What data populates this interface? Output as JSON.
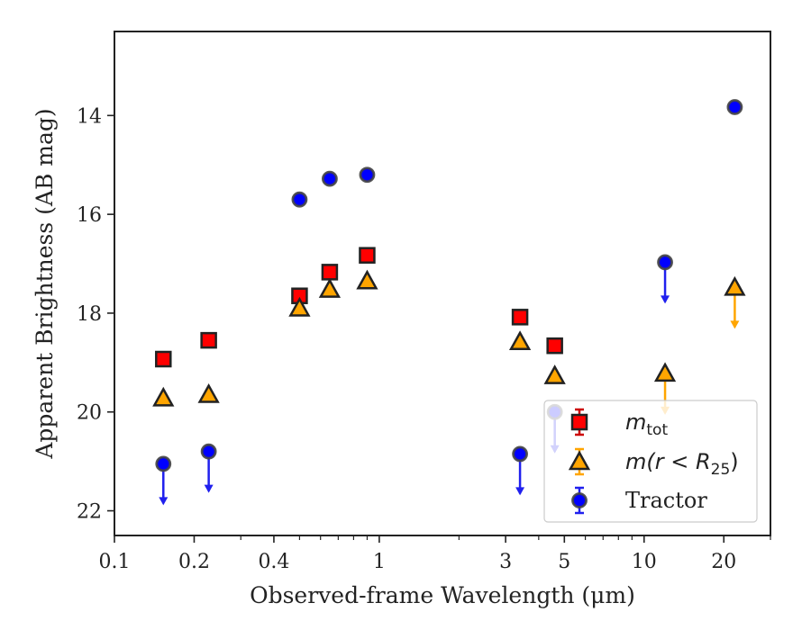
{
  "chart_data": {
    "type": "scatter",
    "xlabel": "Observed-frame Wavelength (μm)",
    "ylabel": "Apparent Brightness (AB mag)",
    "x_scale": "log",
    "y_inverted": true,
    "xlim": [
      0.1,
      30
    ],
    "ylim": [
      22.5,
      12.3
    ],
    "x_ticks": [
      {
        "value": 0.1,
        "label": "0.1"
      },
      {
        "value": 0.2,
        "label": "0.2"
      },
      {
        "value": 0.4,
        "label": "0.4"
      },
      {
        "value": 1,
        "label": "1"
      },
      {
        "value": 3,
        "label": "3"
      },
      {
        "value": 5,
        "label": "5"
      },
      {
        "value": 10,
        "label": "10"
      },
      {
        "value": 20,
        "label": "20"
      }
    ],
    "y_ticks": [
      {
        "value": 14,
        "label": "14"
      },
      {
        "value": 16,
        "label": "16"
      },
      {
        "value": 18,
        "label": "18"
      },
      {
        "value": 20,
        "label": "20"
      },
      {
        "value": 22,
        "label": "22"
      }
    ],
    "grid": false,
    "legend_position": "bottom-right",
    "series": [
      {
        "name": "m_tot",
        "marker": "square",
        "color": "#ff0000",
        "edge_color": "#222222",
        "error_color": "#cc0000",
        "points": [
          {
            "x": 0.153,
            "y": 18.93
          },
          {
            "x": 0.227,
            "y": 18.55
          },
          {
            "x": 0.5,
            "y": 17.65
          },
          {
            "x": 0.65,
            "y": 17.17
          },
          {
            "x": 0.9,
            "y": 16.83
          },
          {
            "x": 3.4,
            "y": 18.08
          },
          {
            "x": 4.6,
            "y": 18.66
          }
        ]
      },
      {
        "name": "m(r < R25)",
        "marker": "triangle",
        "color": "#ffa500",
        "edge_color": "#222222",
        "error_color": "#ffa500",
        "points": [
          {
            "x": 0.153,
            "y": 19.72
          },
          {
            "x": 0.227,
            "y": 19.65
          },
          {
            "x": 0.5,
            "y": 17.9
          },
          {
            "x": 0.65,
            "y": 17.52
          },
          {
            "x": 0.9,
            "y": 17.35
          },
          {
            "x": 3.4,
            "y": 18.58
          },
          {
            "x": 4.6,
            "y": 19.27
          },
          {
            "x": 12.0,
            "y": 19.22,
            "upper_limit": true
          },
          {
            "x": 22.0,
            "y": 17.48,
            "upper_limit": true
          }
        ]
      },
      {
        "name": "Tractor",
        "marker": "circle",
        "color": "#0000ff",
        "edge_color": "#444444",
        "error_color": "#2020ee",
        "points": [
          {
            "x": 0.153,
            "y": 21.05,
            "upper_limit": true
          },
          {
            "x": 0.227,
            "y": 20.8,
            "upper_limit": true
          },
          {
            "x": 0.5,
            "y": 15.7
          },
          {
            "x": 0.65,
            "y": 15.28
          },
          {
            "x": 0.9,
            "y": 15.2
          },
          {
            "x": 3.4,
            "y": 20.85,
            "upper_limit": true
          },
          {
            "x": 4.6,
            "y": 20.0,
            "upper_limit": true
          },
          {
            "x": 12.0,
            "y": 16.97,
            "upper_limit": true
          },
          {
            "x": 22.0,
            "y": 13.83
          }
        ]
      }
    ],
    "legend": {
      "entries": [
        {
          "series": 0,
          "math": "m",
          "sub": "tot"
        },
        {
          "series": 1,
          "math": "m(r < R",
          "sub": "25",
          "suffix": ")"
        },
        {
          "series": 2,
          "text": "Tractor"
        }
      ]
    }
  }
}
